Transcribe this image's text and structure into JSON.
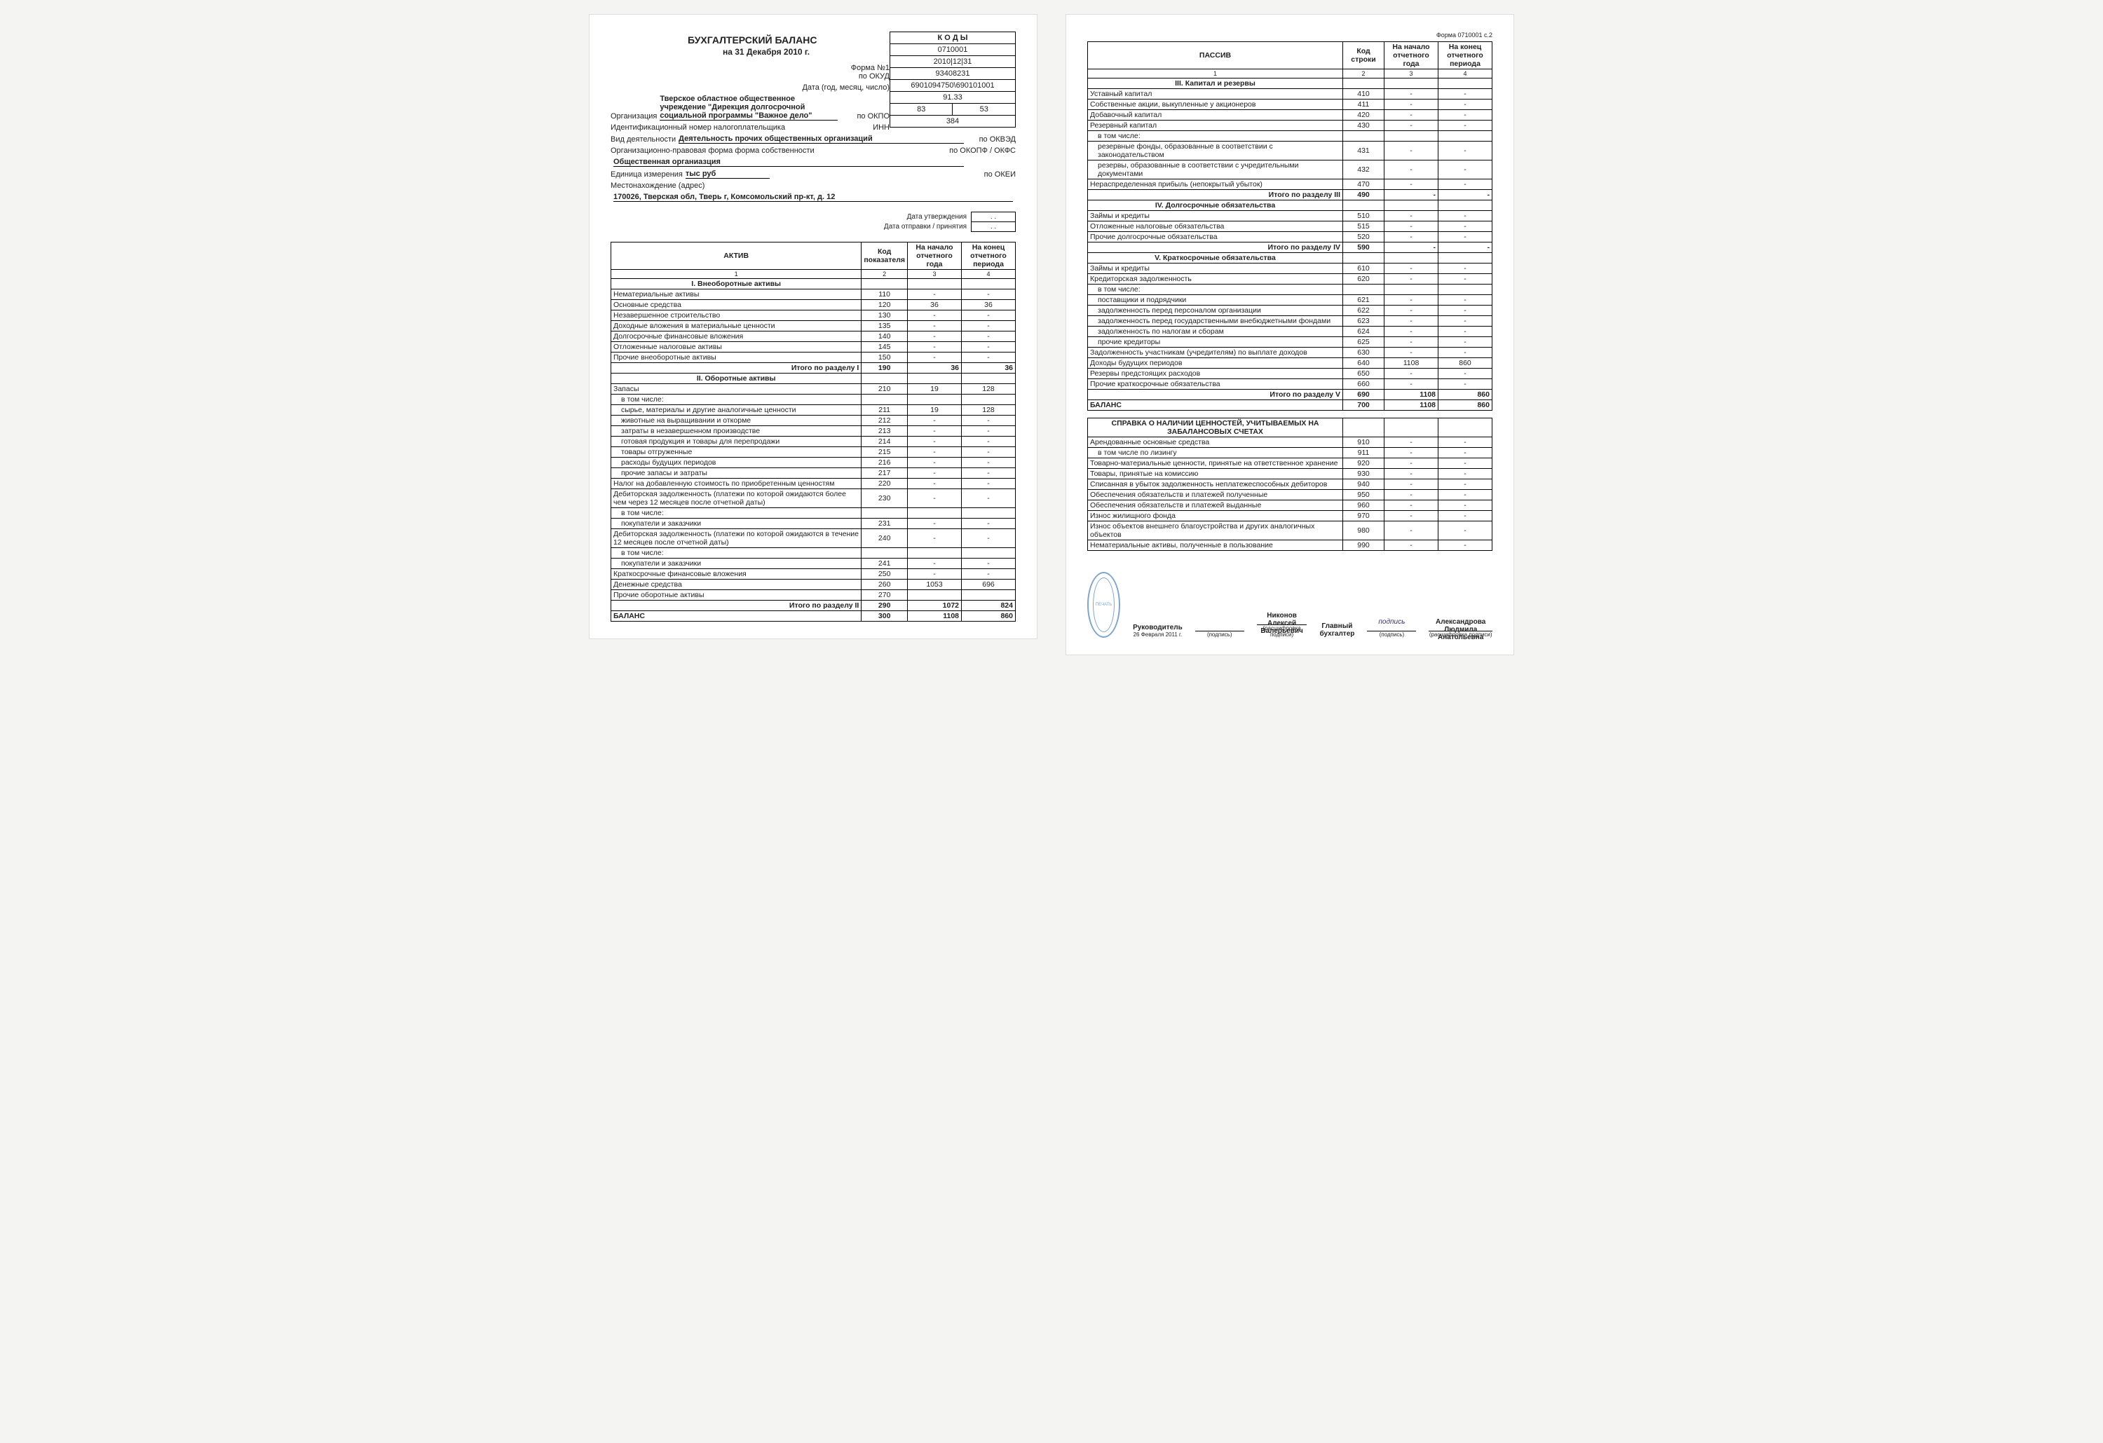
{
  "left": {
    "title": "БУХГАЛТЕРСКИЙ БАЛАНС",
    "subtitle": "на 31 Декабря 2010 г.",
    "kody_head": "К О Д Ы",
    "rows": [
      {
        "lbl": "Форма №1 по ОКУД",
        "val": "0710001"
      },
      {
        "lbl": "Дата (год, месяц, число)",
        "val": "2010|12|31"
      },
      {
        "lbl": "по ОКПО",
        "val": "93408231"
      },
      {
        "lbl": "ИНН",
        "val": "6901094750\\690101001"
      },
      {
        "lbl": "по ОКВЭД",
        "val": "91.33"
      },
      {
        "lbl": "по ОКОПФ / ОКФС",
        "val": "83",
        "val2": "53"
      },
      {
        "lbl": "по ОКЕИ",
        "val": "384"
      }
    ],
    "org_lbl": "Организация",
    "org": "Тверское областное общественное учреждение \"Дирекция долгосрочной социальной программы \"Важное дело\"",
    "inn_lbl": "Идентификационный номер налогоплательщика",
    "act_lbl": "Вид деятельности",
    "act": "Деятельность прочих общественных организаций",
    "opf_lbl": "Организационно-правовая форма          форма собственности",
    "opf": "Общественная органиазция",
    "unit_lbl": "Единица измерения",
    "unit": "тыс руб",
    "addr_lbl": "Местонахождение (адрес)",
    "addr": "170026, Тверская обл, Тверь г, Комсомольский пр-кт, д. 12",
    "date1": "Дата утверждения",
    "date2": "Дата отправки / принятия",
    "dot": ". .",
    "th": [
      "АКТИВ",
      "Код показателя",
      "На начало отчетного года",
      "На конец отчетного периода"
    ],
    "colno": [
      "1",
      "2",
      "3",
      "4"
    ],
    "sections": [
      {
        "title": "I. Внеоборотные активы",
        "rows": [
          {
            "n": "Нематериальные активы",
            "c": "110",
            "a": "-",
            "b": "-"
          },
          {
            "n": "Основные средства",
            "c": "120",
            "a": "36",
            "b": "36"
          },
          {
            "n": "Незавершенное строительство",
            "c": "130",
            "a": "-",
            "b": "-"
          },
          {
            "n": "Доходные вложения в материальные ценности",
            "c": "135",
            "a": "-",
            "b": "-"
          },
          {
            "n": "Долгосрочные финансовые вложения",
            "c": "140",
            "a": "-",
            "b": "-"
          },
          {
            "n": "Отложенные налоговые активы",
            "c": "145",
            "a": "-",
            "b": "-"
          },
          {
            "n": "Прочие внеоборотные активы",
            "c": "150",
            "a": "-",
            "b": "-"
          }
        ],
        "sum": {
          "n": "Итого по разделу I",
          "c": "190",
          "a": "36",
          "b": "36"
        }
      },
      {
        "title": "II. Оборотные активы",
        "rows": [
          {
            "n": "Запасы",
            "c": "210",
            "a": "19",
            "b": "128"
          },
          {
            "n": "в том числе:",
            "sub": 1,
            "noc": 1
          },
          {
            "n": "сырье, материалы и другие аналогичные ценности",
            "sub": 1,
            "c": "211",
            "a": "19",
            "b": "128"
          },
          {
            "n": "животные на выращивании и откорме",
            "sub": 1,
            "c": "212",
            "a": "-",
            "b": "-"
          },
          {
            "n": "затраты в незавершенном производстве",
            "sub": 1,
            "c": "213",
            "a": "-",
            "b": "-"
          },
          {
            "n": "готовая продукция и товары для перепродажи",
            "sub": 1,
            "c": "214",
            "a": "-",
            "b": "-"
          },
          {
            "n": "товары отгруженные",
            "sub": 1,
            "c": "215",
            "a": "-",
            "b": "-"
          },
          {
            "n": "расходы будущих периодов",
            "sub": 1,
            "c": "216",
            "a": "-",
            "b": "-"
          },
          {
            "n": "прочие запасы и затраты",
            "sub": 1,
            "c": "217",
            "a": "-",
            "b": "-"
          },
          {
            "n": "Налог на добавленную стоимость по приобретенным ценностям",
            "c": "220",
            "a": "-",
            "b": "-"
          },
          {
            "n": "Дебиторская задолженность (платежи по которой ожидаются более чем через 12 месяцев после отчетной даты)",
            "c": "230",
            "a": "-",
            "b": "-"
          },
          {
            "n": "в том числе:",
            "sub": 1,
            "noc": 1
          },
          {
            "n": "покупатели и заказчики",
            "sub": 1,
            "c": "231",
            "a": "-",
            "b": "-"
          },
          {
            "n": "Дебиторская задолженность (платежи по которой ожидаются в течение 12 месяцев после отчетной даты)",
            "c": "240",
            "a": "-",
            "b": "-"
          },
          {
            "n": "в том числе:",
            "sub": 1,
            "noc": 1
          },
          {
            "n": "покупатели и заказчики",
            "sub": 1,
            "c": "241",
            "a": "-",
            "b": "-"
          },
          {
            "n": "Краткосрочные финансовые вложения",
            "c": "250",
            "a": "-",
            "b": "-"
          },
          {
            "n": "Денежные средства",
            "c": "260",
            "a": "1053",
            "b": "696"
          },
          {
            "n": "Прочие оборотные активы",
            "c": "270",
            "a": "",
            "b": ""
          }
        ],
        "sum": {
          "n": "Итого по разделу II",
          "c": "290",
          "a": "1072",
          "b": "824"
        }
      }
    ],
    "balance": {
      "n": "БАЛАНС",
      "c": "300",
      "a": "1108",
      "b": "860"
    }
  },
  "right": {
    "form": "Форма 0710001 с.2",
    "th": [
      "ПАССИВ",
      "Код строки",
      "На начало отчетного года",
      "На конец отчетного периода"
    ],
    "colno": [
      "1",
      "2",
      "3",
      "4"
    ],
    "sections": [
      {
        "title": "III. Капитал и резервы",
        "rows": [
          {
            "n": "Уставный капитал",
            "c": "410",
            "a": "-",
            "b": "-"
          },
          {
            "n": "Собственные акции, выкупленные у акционеров",
            "c": "411",
            "a": "-",
            "b": "-"
          },
          {
            "n": "Добавочный капитал",
            "c": "420",
            "a": "-",
            "b": "-"
          },
          {
            "n": "Резервный капитал",
            "c": "430",
            "a": "-",
            "b": "-"
          },
          {
            "n": "в том числе:",
            "sub": 1,
            "noc": 1
          },
          {
            "n": "резервные фонды, образованные в соответствии с законодательством",
            "sub": 1,
            "c": "431",
            "a": "-",
            "b": "-"
          },
          {
            "n": "резервы, образованные в соответствии с учредительными документами",
            "sub": 1,
            "c": "432",
            "a": "-",
            "b": "-"
          },
          {
            "n": "Нераспределенная прибыль (непокрытый убыток)",
            "c": "470",
            "a": "-",
            "b": "-"
          }
        ],
        "sum": {
          "n": "Итого по разделу III",
          "c": "490",
          "a": "-",
          "b": "-"
        }
      },
      {
        "title": "IV. Долгосрочные обязательства",
        "rows": [
          {
            "n": "Займы и кредиты",
            "c": "510",
            "a": "-",
            "b": "-"
          },
          {
            "n": "Отложенные налоговые обязательства",
            "c": "515",
            "a": "-",
            "b": "-"
          },
          {
            "n": "Прочие долгосрочные обязательства",
            "c": "520",
            "a": "-",
            "b": "-"
          }
        ],
        "sum": {
          "n": "Итого по разделу IV",
          "c": "590",
          "a": "-",
          "b": "-"
        }
      },
      {
        "title": "V. Краткосрочные обязательства",
        "rows": [
          {
            "n": "Займы и кредиты",
            "c": "610",
            "a": "-",
            "b": "-"
          },
          {
            "n": "Кредиторская задолженность",
            "c": "620",
            "a": "-",
            "b": "-"
          },
          {
            "n": "в том числе:",
            "sub": 1,
            "noc": 1
          },
          {
            "n": "поставщики и подрядчики",
            "sub": 1,
            "c": "621",
            "a": "-",
            "b": "-"
          },
          {
            "n": "задолженность перед персоналом организации",
            "sub": 1,
            "c": "622",
            "a": "-",
            "b": "-"
          },
          {
            "n": "задолженность перед государственными внебюджетными фондами",
            "sub": 1,
            "c": "623",
            "a": "-",
            "b": "-"
          },
          {
            "n": "задолженность по налогам и сборам",
            "sub": 1,
            "c": "624",
            "a": "-",
            "b": "-"
          },
          {
            "n": "прочие кредиторы",
            "sub": 1,
            "c": "625",
            "a": "-",
            "b": "-"
          },
          {
            "n": "Задолженность участникам (учредителям) по выплате доходов",
            "c": "630",
            "a": "-",
            "b": "-"
          },
          {
            "n": "Доходы будущих периодов",
            "c": "640",
            "a": "1108",
            "b": "860"
          },
          {
            "n": "Резервы предстоящих расходов",
            "c": "650",
            "a": "-",
            "b": "-"
          },
          {
            "n": "Прочие краткосрочные обязательства",
            "c": "660",
            "a": "-",
            "b": "-"
          }
        ],
        "sum": {
          "n": "Итого по разделу V",
          "c": "690",
          "a": "1108",
          "b": "860"
        }
      }
    ],
    "balance": {
      "n": "БАЛАНС",
      "c": "700",
      "a": "1108",
      "b": "860"
    },
    "ref_title": "СПРАВКА О НАЛИЧИИ ЦЕННОСТЕЙ, УЧИТЫВАЕМЫХ НА ЗАБАЛАНСОВЫХ СЧЕТАХ",
    "ref": [
      {
        "n": "Арендованные основные средства",
        "c": "910",
        "a": "-",
        "b": "-"
      },
      {
        "n": "в том числе по лизингу",
        "sub": 1,
        "c": "911",
        "a": "-",
        "b": "-"
      },
      {
        "n": "Товарно-материальные ценности, принятые на ответственное хранение",
        "c": "920",
        "a": "-",
        "b": "-"
      },
      {
        "n": "Товары, принятые на комиссию",
        "c": "930",
        "a": "-",
        "b": "-"
      },
      {
        "n": "Списанная в убыток задолженность неплатежеспособных дебиторов",
        "c": "940",
        "a": "-",
        "b": "-"
      },
      {
        "n": "Обеспечения обязательств и платежей полученные",
        "c": "950",
        "a": "-",
        "b": "-"
      },
      {
        "n": "Обеспечения обязательств и платежей выданные",
        "c": "960",
        "a": "-",
        "b": "-"
      },
      {
        "n": "Износ жилищного фонда",
        "c": "970",
        "a": "-",
        "b": "-"
      },
      {
        "n": "Износ объектов внешнего благоустройства и других аналогичных объектов",
        "c": "980",
        "a": "-",
        "b": "-"
      },
      {
        "n": "Нематериальные активы, полученные в пользование",
        "c": "990",
        "a": "-",
        "b": "-"
      }
    ],
    "sig": {
      "head_lbl": "Руководитель",
      "head_name": "Никонов Алексей Валерьевич",
      "acc_lbl": "Главный бухгалтер",
      "acc_name": "Александрова Людмила Анатольевна",
      "podpis": "(подпись)",
      "rasp": "(расшифровка подписи)",
      "date": "26 Февраля 2011 г."
    }
  }
}
